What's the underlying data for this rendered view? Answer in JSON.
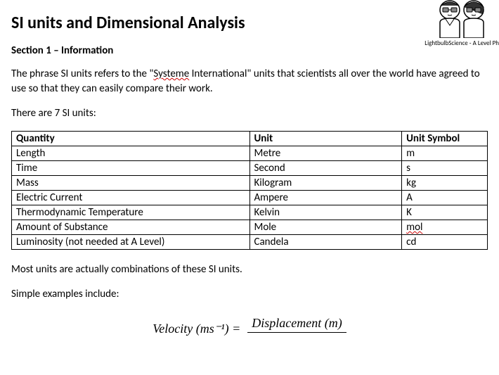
{
  "logo": {
    "tagline": "LightbulbScience - A Level Ph"
  },
  "title": "SI units and Dimensional Analysis",
  "section_heading": "Section 1 – Information",
  "intro_part1": "The phrase SI units refers to the \"",
  "intro_squiggle": "Systeme",
  "intro_part2": " International\" units that scientists all over the world have agreed to use so that they can easily compare their work.",
  "count_line": "There are 7 SI units:",
  "table": {
    "headers": {
      "quantity": "Quantity",
      "unit": "Unit",
      "symbol": "Unit Symbol"
    },
    "rows": [
      {
        "quantity": "Length",
        "unit": "Metre",
        "symbol": "m",
        "squiggle": false
      },
      {
        "quantity": "Time",
        "unit": "Second",
        "symbol": "s",
        "squiggle": false
      },
      {
        "quantity": "Mass",
        "unit": "Kilogram",
        "symbol": "kg",
        "squiggle": false
      },
      {
        "quantity": "Electric Current",
        "unit": "Ampere",
        "symbol": "A",
        "squiggle": false
      },
      {
        "quantity": "Thermodynamic Temperature",
        "unit": "Kelvin",
        "symbol": "K",
        "squiggle": false
      },
      {
        "quantity": "Amount of Substance",
        "unit": "Mole",
        "symbol": "mol",
        "squiggle": true
      },
      {
        "quantity": "Luminosity (not needed at A Level)",
        "unit": "Candela",
        "symbol": "cd",
        "squiggle": false
      }
    ]
  },
  "combo_line": "Most units are actually combinations of these SI units.",
  "examples_line": "Simple examples include:",
  "equation": {
    "left": "Velocity (ms⁻¹) =",
    "numerator": "Displacement (m)"
  }
}
